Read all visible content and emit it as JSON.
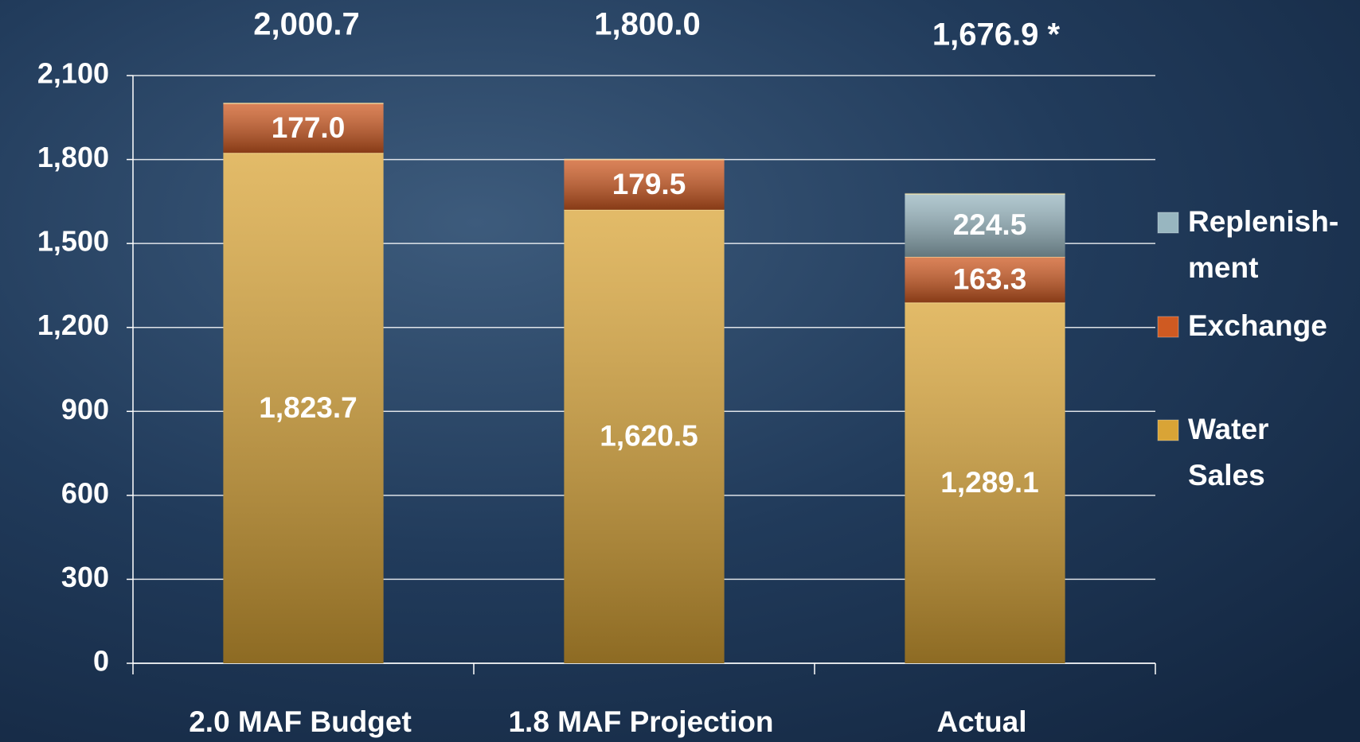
{
  "chart_data": {
    "type": "stacked_bar",
    "categories": [
      "2.0 MAF Budget",
      "1.8 MAF Projection",
      "Actual"
    ],
    "series": [
      {
        "name": "Water\nSales",
        "color": "#d9a436",
        "values": [
          1823.7,
          1620.5,
          1289.1
        ],
        "value_labels": [
          "1,823.7",
          "1,620.5",
          "1,289.1"
        ]
      },
      {
        "name": "Exchange",
        "color": "#cf5a22",
        "values": [
          177.0,
          179.5,
          163.3
        ],
        "value_labels": [
          "177.0",
          "179.5",
          "163.3"
        ]
      },
      {
        "name": "Replenish-\nment",
        "color": "#98b6c0",
        "values": [
          null,
          null,
          224.5
        ],
        "value_labels": [
          null,
          null,
          "224.5"
        ]
      }
    ],
    "totals": [
      "2,000.7",
      "1,800.0",
      "1,676.9 *"
    ],
    "ylim": [
      0,
      2100
    ],
    "yticks": [
      0,
      300,
      600,
      900,
      {
        "value": 1200,
        "label": "1,200"
      },
      {
        "value": 1500,
        "label": "1,500"
      },
      {
        "value": 1800,
        "label": "1,800"
      },
      {
        "value": 2100,
        "label": "2,100"
      }
    ],
    "grid": true,
    "legend": "right"
  }
}
